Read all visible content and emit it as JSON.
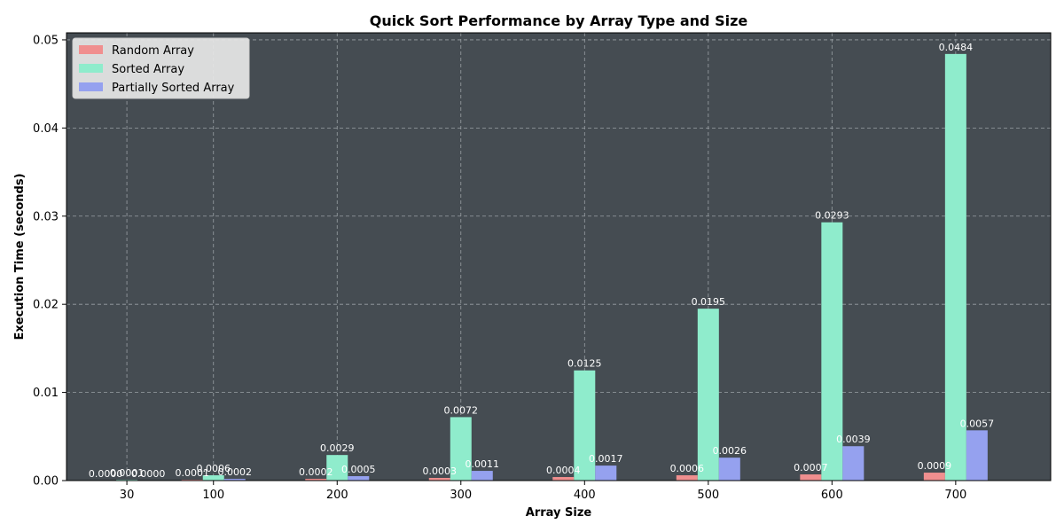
{
  "chart_data": {
    "type": "bar",
    "title": "Quick Sort Performance by Array Type and Size",
    "xlabel": "Array Size",
    "ylabel": "Execution Time (seconds)",
    "categories": [
      "30",
      "100",
      "200",
      "300",
      "400",
      "500",
      "600",
      "700"
    ],
    "x": [
      30,
      100,
      200,
      300,
      400,
      500,
      600,
      700
    ],
    "ylim": [
      0,
      0.0508
    ],
    "yticks": [
      0.0,
      0.01,
      0.02,
      0.03,
      0.04,
      0.05
    ],
    "ytick_labels": [
      "0.00",
      "0.01",
      "0.02",
      "0.03",
      "0.04",
      "0.05"
    ],
    "grid": true,
    "legend_position": "top-left",
    "background_color": "#454c52",
    "series": [
      {
        "name": "Random Array",
        "color": "#f08f8f",
        "values": [
          0.0,
          0.0001,
          0.0002,
          0.0003,
          0.0004,
          0.0006,
          0.0007,
          0.0009
        ],
        "labels": [
          "0.0000",
          "0.0001",
          "0.0002",
          "0.0003",
          "0.0004",
          "0.0006",
          "0.0007",
          "0.0009"
        ]
      },
      {
        "name": "Sorted Array",
        "color": "#8feccc",
        "values": [
          0.0001,
          0.0006,
          0.0029,
          0.0072,
          0.0125,
          0.0195,
          0.0293,
          0.0484
        ],
        "labels": [
          "0.0001",
          "0.0006",
          "0.0029",
          "0.0072",
          "0.0125",
          "0.0195",
          "0.0293",
          "0.0484"
        ]
      },
      {
        "name": "Partially Sorted Array",
        "color": "#95a1ef",
        "values": [
          0.0,
          0.0002,
          0.0005,
          0.0011,
          0.0017,
          0.0026,
          0.0039,
          0.0057
        ],
        "labels": [
          "0.0000",
          "0.0002",
          "0.0005",
          "0.0011",
          "0.0017",
          "0.0026",
          "0.0039",
          "0.0057"
        ]
      }
    ]
  }
}
